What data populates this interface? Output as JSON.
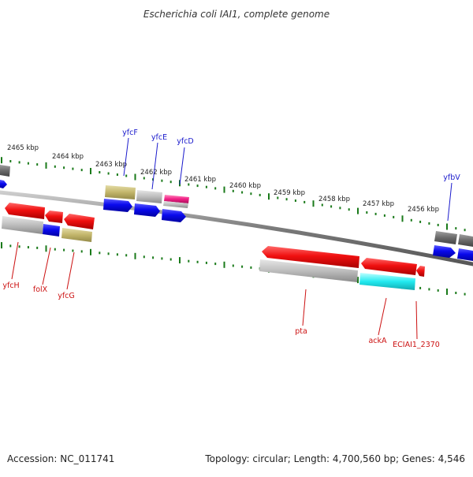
{
  "title": "Escherichia coli IAI1, complete genome",
  "accession": "Accession: NC_011741",
  "topology": "Topology: circular; Length: 4,700,560 bp; Genes: 4,546",
  "colors": {
    "backbone": "#7a7a7a",
    "ticks": "#1a7a1a",
    "label_top": "#1a1acc",
    "label_bottom": "#cc1111"
  },
  "tick_labels": [
    "2465 kbp",
    "2464 kbp",
    "2463 kbp",
    "2462 kbp",
    "2461 kbp",
    "2460 kbp",
    "2459 kbp",
    "2458 kbp",
    "2457 kbp",
    "2456 kbp"
  ],
  "gene_labels_top": [
    "yfcF",
    "yfcE",
    "yfcD",
    "yfbV"
  ],
  "gene_labels_bottom": [
    "yfcH",
    "folX",
    "yfcG",
    "pta",
    "ackA",
    "ECIAI1_2370"
  ]
}
